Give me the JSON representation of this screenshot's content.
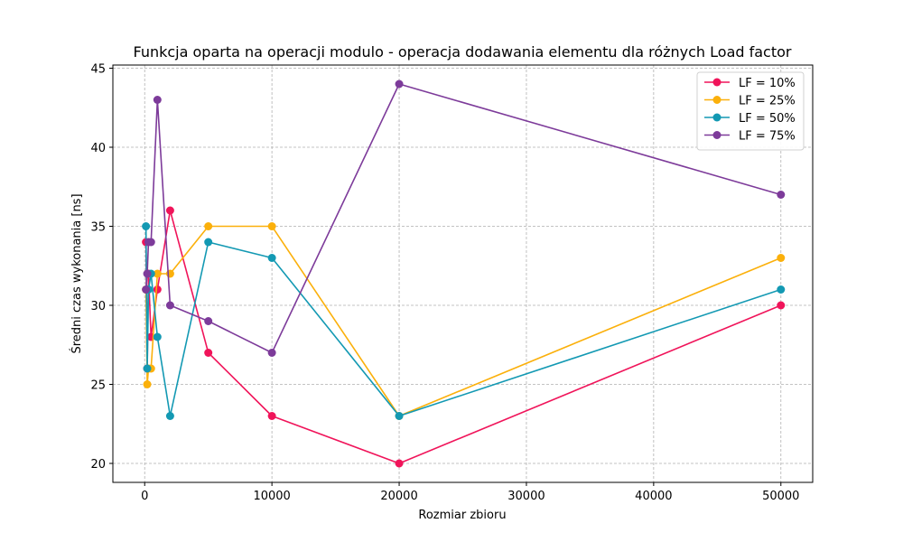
{
  "chart_data": {
    "type": "line",
    "title": "Funkcja oparta na operacji modulo - operacja dodawania elementu dla różnych Load factor",
    "xlabel": "Rozmiar zbioru",
    "ylabel": "Średni czas wykonania [ns]",
    "xlim": [
      -2500,
      52500
    ],
    "ylim": [
      18.8,
      45.2
    ],
    "xticks": [
      0,
      10000,
      20000,
      30000,
      40000,
      50000
    ],
    "yticks": [
      20,
      25,
      30,
      35,
      40,
      45
    ],
    "grid": true,
    "legend_position": "top-right",
    "x": [
      100,
      200,
      300,
      500,
      1000,
      2000,
      5000,
      10000,
      20000,
      50000
    ],
    "series": [
      {
        "name": "LF = 10%",
        "color": "#f0145a",
        "values": [
          34,
          26,
          32,
          28,
          31,
          36,
          27,
          23,
          20,
          30
        ]
      },
      {
        "name": "LF = 25%",
        "color": "#fbb00b",
        "values": [
          31,
          25,
          26,
          26,
          32,
          32,
          35,
          35,
          23,
          33
        ]
      },
      {
        "name": "LF = 50%",
        "color": "#1399b3",
        "values": [
          35,
          26,
          31,
          32,
          28,
          23,
          34,
          33,
          23,
          31
        ]
      },
      {
        "name": "LF = 75%",
        "color": "#7d3b9a",
        "values": [
          31,
          32,
          34,
          34,
          43,
          30,
          29,
          27,
          44,
          37
        ]
      }
    ]
  }
}
